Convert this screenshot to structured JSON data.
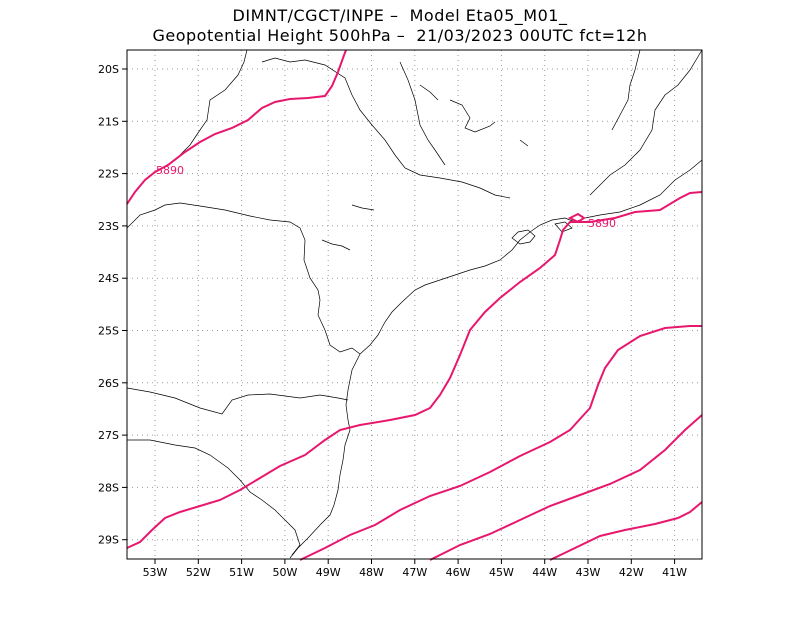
{
  "header": {
    "line1": "DIMNT/CGCT/INPE –  Model Eta05_M01_",
    "line2": "Geopotential Height 500hPa –  21/03/2023 00UTC fct=12h"
  },
  "axes": {
    "lat_labels": [
      "20S",
      "21S",
      "22S",
      "23S",
      "24S",
      "25S",
      "26S",
      "27S",
      "28S",
      "29S"
    ],
    "lon_labels": [
      "53W",
      "52W",
      "51W",
      "50W",
      "49W",
      "48W",
      "47W",
      "46W",
      "45W",
      "44W",
      "43W",
      "42W",
      "41W"
    ]
  },
  "contours": {
    "label_text": "5890",
    "color": "#e8176e"
  }
}
